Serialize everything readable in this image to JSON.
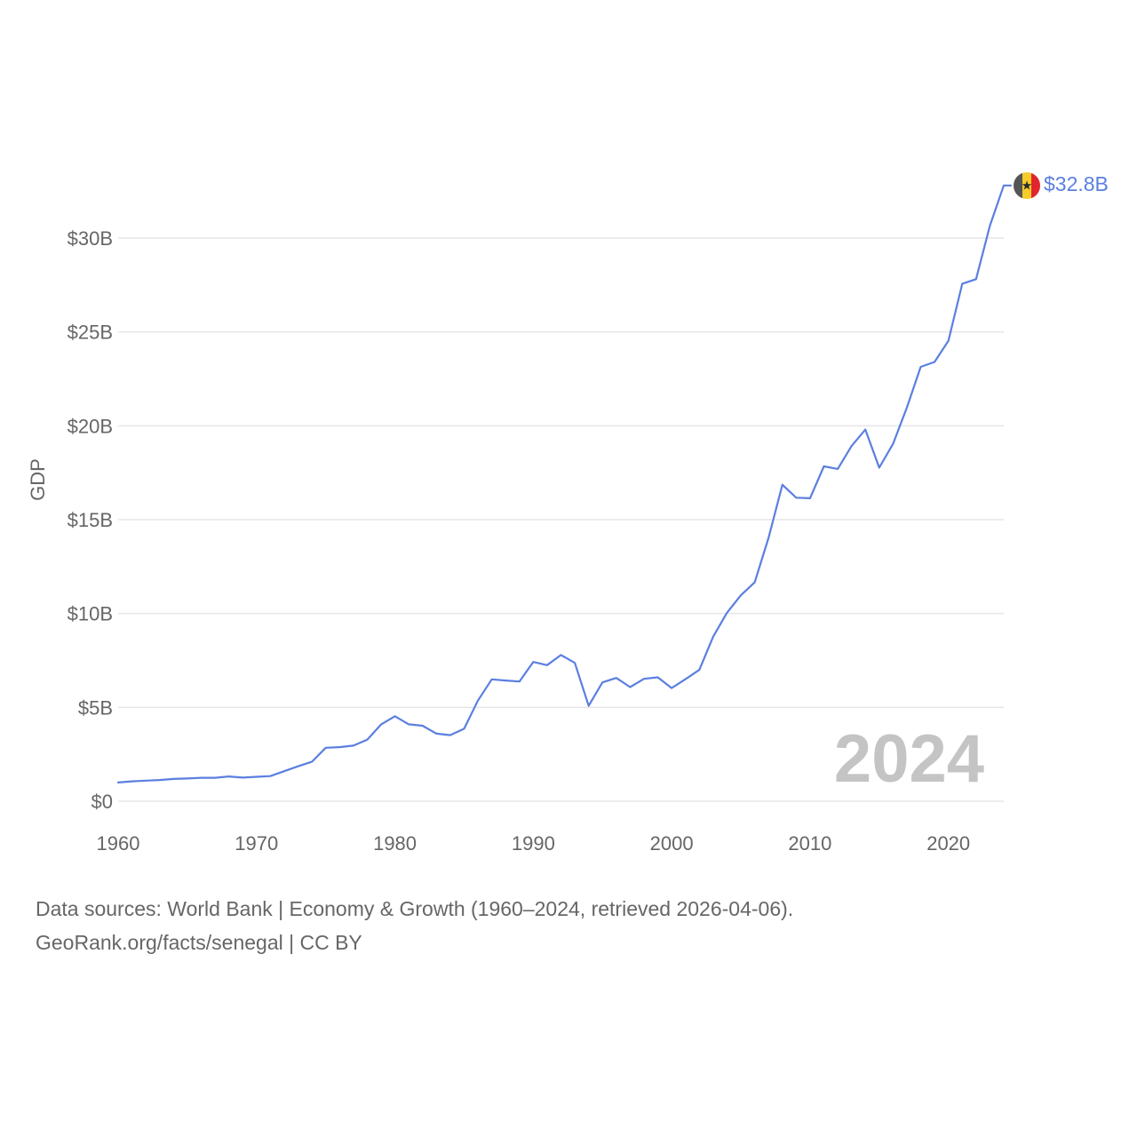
{
  "chart_data": {
    "type": "line",
    "title": "",
    "xlabel": "",
    "ylabel": "GDP",
    "xlim": [
      1960,
      2024
    ],
    "ylim": [
      0,
      33
    ],
    "x_ticks": [
      1960,
      1970,
      1980,
      1990,
      2000,
      2010,
      2020
    ],
    "x_tick_labels": [
      "1960",
      "1970",
      "1980",
      "1990",
      "2000",
      "2010",
      "2020"
    ],
    "y_ticks": [
      0,
      5,
      10,
      15,
      20,
      25,
      30
    ],
    "y_tick_labels": [
      "$0",
      "$5B",
      "$10B",
      "$15B",
      "$20B",
      "$25B",
      "$30B"
    ],
    "grid": true,
    "series": [
      {
        "name": "Senegal",
        "color": "#5b7fe0",
        "unit": "billions USD",
        "x": [
          1960,
          1961,
          1962,
          1963,
          1964,
          1965,
          1966,
          1967,
          1968,
          1969,
          1970,
          1971,
          1972,
          1973,
          1974,
          1975,
          1976,
          1977,
          1978,
          1979,
          1980,
          1981,
          1982,
          1983,
          1984,
          1985,
          1986,
          1987,
          1988,
          1989,
          1990,
          1991,
          1992,
          1993,
          1994,
          1995,
          1996,
          1997,
          1998,
          1999,
          2000,
          2001,
          2002,
          2003,
          2004,
          2005,
          2006,
          2007,
          2008,
          2009,
          2010,
          2011,
          2012,
          2013,
          2014,
          2015,
          2016,
          2017,
          2018,
          2019,
          2020,
          2021,
          2022,
          2023,
          2024
        ],
        "values": [
          1.0,
          1.06,
          1.1,
          1.13,
          1.19,
          1.21,
          1.25,
          1.25,
          1.32,
          1.26,
          1.3,
          1.34,
          1.6,
          1.86,
          2.1,
          2.85,
          2.88,
          2.96,
          3.28,
          4.09,
          4.53,
          4.1,
          4.02,
          3.6,
          3.52,
          3.86,
          5.36,
          6.49,
          6.43,
          6.38,
          7.42,
          7.25,
          7.79,
          7.37,
          5.08,
          6.33,
          6.57,
          6.08,
          6.52,
          6.6,
          6.03,
          6.5,
          7.0,
          8.77,
          10.04,
          10.97,
          11.66,
          14.03,
          16.86,
          16.17,
          16.14,
          17.84,
          17.7,
          18.92,
          19.8,
          17.77,
          19.04,
          20.98,
          23.14,
          23.4,
          24.53,
          27.57,
          27.81,
          30.66,
          32.8
        ]
      }
    ],
    "end_label": "$32.8B",
    "year_label": "2024",
    "legend": "none"
  },
  "colors": {
    "line": "#5b7fe0",
    "flag_green": "#555555",
    "flag_yellow": "#f5cc2a",
    "flag_red": "#e0262c",
    "flag_star": "#2a2a2a"
  },
  "flag": {
    "icon": "senegal-flag-icon"
  },
  "footer": {
    "line1": "Data sources: World Bank | Economy & Growth (1960–2024, retrieved 2026-04-06).",
    "line2": "GeoRank.org/facts/senegal | CC BY"
  }
}
